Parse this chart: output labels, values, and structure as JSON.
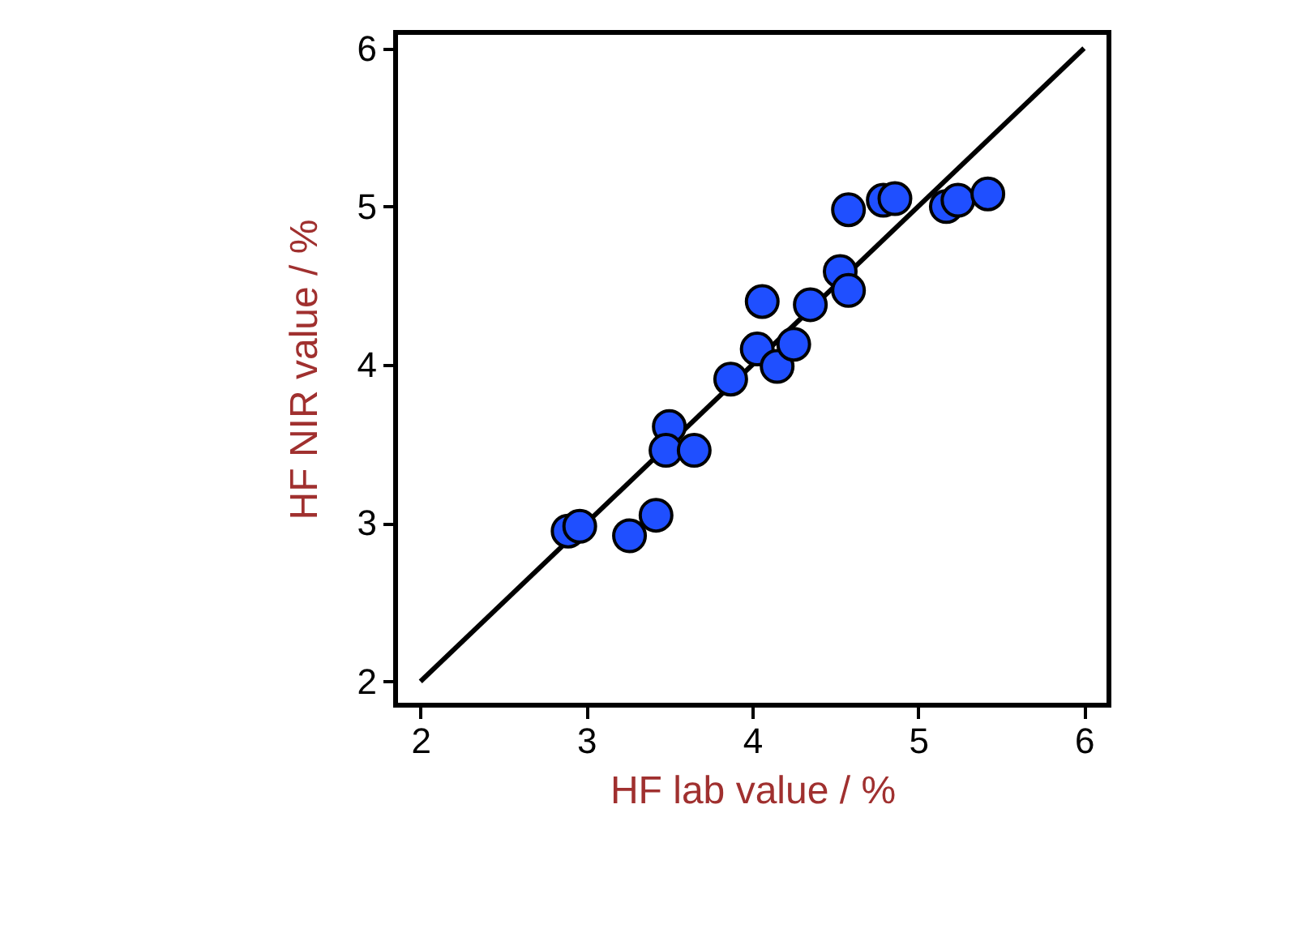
{
  "chart_data": {
    "type": "scatter",
    "xlabel": "HF lab value / %",
    "ylabel": "HF NIR value / %",
    "xlim": [
      1.85,
      6.15
    ],
    "ylim": [
      1.85,
      6.1
    ],
    "xticks": [
      2,
      3,
      4,
      5,
      6
    ],
    "yticks": [
      2,
      3,
      4,
      5,
      6
    ],
    "grid": false,
    "marker": "circle",
    "series": [
      {
        "type": "line",
        "color": "#000000",
        "line_style": "solid",
        "marker": "none",
        "x": [
          2,
          6
        ],
        "values": [
          2,
          6
        ]
      },
      {
        "color": "#1f4fff",
        "x": [
          2.89,
          2.96,
          3.26,
          3.42,
          3.5,
          3.48,
          3.65,
          3.87,
          4.03,
          4.06,
          4.15,
          4.25,
          4.35,
          4.53,
          4.58,
          4.58,
          4.79,
          4.86,
          5.17,
          5.24,
          5.42
        ],
        "values": [
          2.95,
          2.98,
          2.92,
          3.05,
          3.61,
          3.46,
          3.46,
          3.91,
          4.1,
          4.4,
          3.99,
          4.13,
          4.38,
          4.59,
          4.47,
          4.98,
          5.04,
          5.05,
          5.0,
          5.04,
          5.08
        ]
      }
    ]
  }
}
